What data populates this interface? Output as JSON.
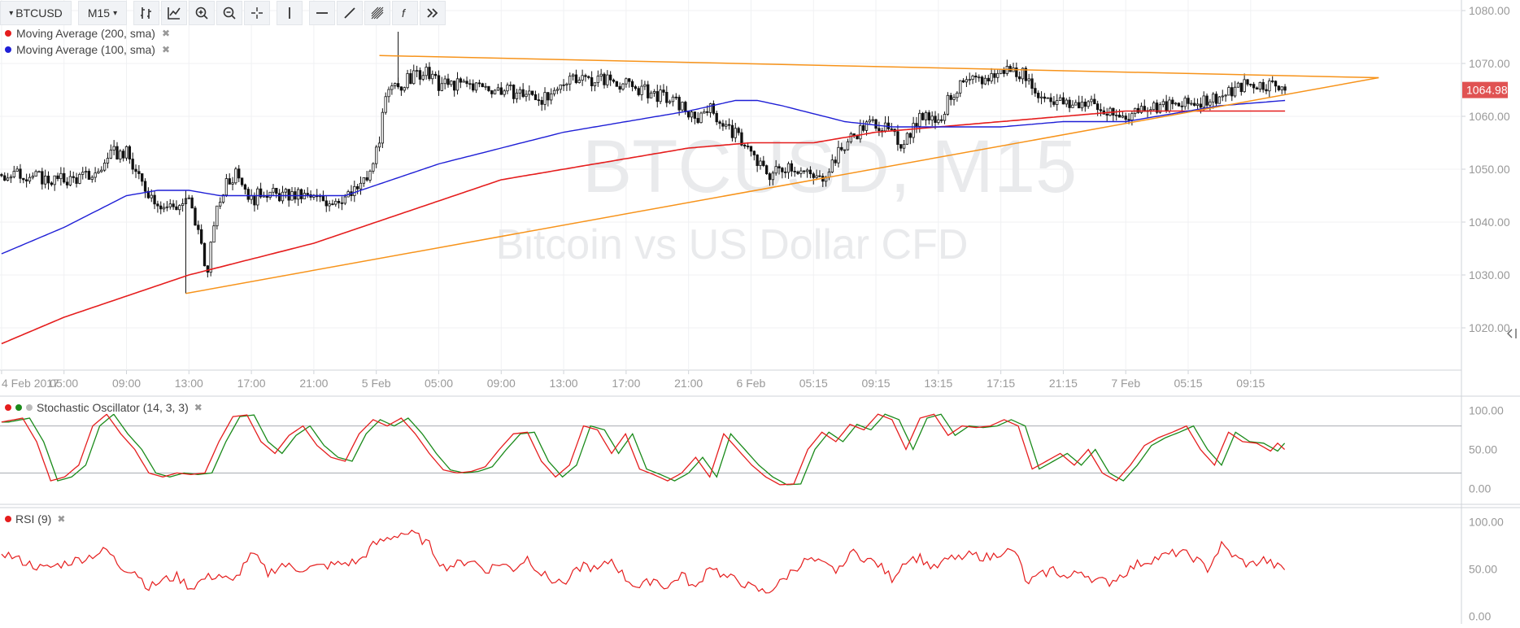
{
  "toolbar": {
    "symbol": "BTCUSD",
    "interval": "M15",
    "icons": [
      "bar-style-icon",
      "indicators-icon",
      "zoom-in-icon",
      "zoom-out-icon",
      "crosshair-icon",
      "vertical-line-icon",
      "horizontal-line-icon",
      "trend-line-icon",
      "fibonacci-icon",
      "formula-icon",
      "more-icon"
    ]
  },
  "legend": {
    "ma200": "Moving Average (200, sma)",
    "ma100": "Moving Average (100, sma)",
    "close_glyph": "✖"
  },
  "watermark": {
    "title": "BTCUSD, M15",
    "subtitle": "Bitcoin vs US Dollar CFD"
  },
  "indicators": {
    "stoch_label": "Stochastic Oscillator (14, 3, 3)",
    "rsi_label": "RSI (9)"
  },
  "colors": {
    "ma200": "#e51d1d",
    "ma100": "#1f1fd6",
    "trendline": "#f7931a",
    "candle": "#111111",
    "stoch_k": "#e51d1d",
    "stoch_d": "#1a8a1a",
    "rsi": "#e51d1d",
    "price_badge": "#e05252"
  },
  "chart_data": [
    {
      "type": "candlestick",
      "ylim": [
        1012,
        1082
      ],
      "y_ticks": [
        "1080.00",
        "1070.00",
        "1060.00",
        "1050.00",
        "1040.00",
        "1030.00",
        "1020.00"
      ],
      "y_tick_values": [
        1080,
        1070,
        1060,
        1050,
        1040,
        1030,
        1020
      ],
      "x_ticks": [
        "4 Feb 2017",
        "05:00",
        "09:00",
        "13:00",
        "17:00",
        "21:00",
        "5 Feb",
        "05:00",
        "09:00",
        "13:00",
        "17:00",
        "21:00",
        "6 Feb",
        "05:15",
        "09:15",
        "13:15",
        "17:15",
        "21:15",
        "7 Feb",
        "05:15",
        "09:15"
      ],
      "x_tick_index": [
        0,
        20,
        40,
        60,
        80,
        100,
        120,
        140,
        160,
        180,
        200,
        220,
        240,
        260,
        280,
        300,
        320,
        340,
        360,
        380,
        400
      ],
      "n_bars": 412,
      "last_price": "1064.98",
      "last_price_value": 1064.98,
      "price_anchors": [
        [
          0,
          1049
        ],
        [
          8,
          1049
        ],
        [
          15,
          1048
        ],
        [
          22,
          1048
        ],
        [
          30,
          1049
        ],
        [
          36,
          1053
        ],
        [
          40,
          1053
        ],
        [
          44,
          1048
        ],
        [
          48,
          1045
        ],
        [
          52,
          1043
        ],
        [
          56,
          1043
        ],
        [
          60,
          1044
        ],
        [
          64,
          1036
        ],
        [
          66,
          1030
        ],
        [
          68,
          1040
        ],
        [
          72,
          1048
        ],
        [
          76,
          1049
        ],
        [
          80,
          1044
        ],
        [
          84,
          1046
        ],
        [
          88,
          1045
        ],
        [
          95,
          1045
        ],
        [
          104,
          1044
        ],
        [
          112,
          1045
        ],
        [
          118,
          1049
        ],
        [
          121,
          1056
        ],
        [
          123,
          1063
        ],
        [
          125,
          1065
        ],
        [
          128,
          1066
        ],
        [
          133,
          1068
        ],
        [
          136,
          1068
        ],
        [
          140,
          1066
        ],
        [
          150,
          1066
        ],
        [
          160,
          1065
        ],
        [
          170,
          1064
        ],
        [
          176,
          1063
        ],
        [
          182,
          1068
        ],
        [
          188,
          1067
        ],
        [
          195,
          1067
        ],
        [
          205,
          1065
        ],
        [
          210,
          1064
        ],
        [
          218,
          1062
        ],
        [
          222,
          1059
        ],
        [
          226,
          1062
        ],
        [
          232,
          1058
        ],
        [
          238,
          1055
        ],
        [
          242,
          1051
        ],
        [
          246,
          1049
        ],
        [
          252,
          1051
        ],
        [
          258,
          1049
        ],
        [
          262,
          1048
        ],
        [
          268,
          1053
        ],
        [
          272,
          1056
        ],
        [
          276,
          1058
        ],
        [
          280,
          1059
        ],
        [
          284,
          1057
        ],
        [
          288,
          1055
        ],
        [
          292,
          1058
        ],
        [
          296,
          1061
        ],
        [
          300,
          1059
        ],
        [
          304,
          1064
        ],
        [
          308,
          1066
        ],
        [
          315,
          1067
        ],
        [
          322,
          1069
        ],
        [
          328,
          1068
        ],
        [
          330,
          1064
        ],
        [
          334,
          1064
        ],
        [
          338,
          1063
        ],
        [
          342,
          1062
        ],
        [
          348,
          1063
        ],
        [
          352,
          1061
        ],
        [
          356,
          1060
        ],
        [
          360,
          1060
        ],
        [
          366,
          1062
        ],
        [
          372,
          1062
        ],
        [
          378,
          1062
        ],
        [
          384,
          1063
        ],
        [
          392,
          1064
        ],
        [
          398,
          1066
        ],
        [
          402,
          1066
        ],
        [
          406,
          1066
        ],
        [
          410,
          1066
        ],
        [
          411,
          1065
        ]
      ],
      "ma100_anchors": [
        [
          0,
          1034
        ],
        [
          20,
          1039
        ],
        [
          40,
          1045
        ],
        [
          50,
          1046
        ],
        [
          60,
          1046
        ],
        [
          70,
          1045
        ],
        [
          80,
          1045
        ],
        [
          95,
          1045
        ],
        [
          110,
          1045
        ],
        [
          120,
          1047
        ],
        [
          140,
          1051
        ],
        [
          160,
          1054
        ],
        [
          180,
          1057
        ],
        [
          200,
          1059
        ],
        [
          220,
          1061
        ],
        [
          235,
          1063
        ],
        [
          242,
          1063
        ],
        [
          250,
          1062
        ],
        [
          270,
          1059
        ],
        [
          285,
          1058
        ],
        [
          300,
          1058
        ],
        [
          320,
          1058
        ],
        [
          340,
          1059
        ],
        [
          360,
          1059
        ],
        [
          370,
          1060
        ],
        [
          390,
          1062
        ],
        [
          411,
          1063
        ]
      ],
      "ma200_anchors": [
        [
          0,
          1017
        ],
        [
          20,
          1022
        ],
        [
          40,
          1026
        ],
        [
          60,
          1030
        ],
        [
          80,
          1033
        ],
        [
          100,
          1036
        ],
        [
          120,
          1040
        ],
        [
          140,
          1044
        ],
        [
          160,
          1048
        ],
        [
          180,
          1050
        ],
        [
          200,
          1052
        ],
        [
          220,
          1054
        ],
        [
          240,
          1055
        ],
        [
          260,
          1055
        ],
        [
          280,
          1057
        ],
        [
          300,
          1058
        ],
        [
          320,
          1059
        ],
        [
          340,
          1060
        ],
        [
          360,
          1061
        ],
        [
          380,
          1061
        ],
        [
          395,
          1061
        ],
        [
          411,
          1061
        ]
      ],
      "trendlines": [
        {
          "from": [
            59,
            1026.5
          ],
          "to": [
            441,
            1067.3
          ]
        },
        {
          "from": [
            121,
            1071.5
          ],
          "to": [
            441,
            1067.3
          ]
        }
      ]
    },
    {
      "type": "line",
      "name": "Stochastic Oscillator (14, 3, 3)",
      "ylim": [
        0,
        100
      ],
      "y_ticks": [
        "100.00",
        "50.00",
        "0.00"
      ],
      "y_tick_values": [
        100,
        50,
        0
      ],
      "levels": [
        20,
        80
      ],
      "k_anchors": [
        [
          0,
          85
        ],
        [
          6,
          90
        ],
        [
          10,
          60
        ],
        [
          14,
          10
        ],
        [
          18,
          15
        ],
        [
          22,
          30
        ],
        [
          26,
          80
        ],
        [
          30,
          95
        ],
        [
          34,
          70
        ],
        [
          38,
          50
        ],
        [
          42,
          20
        ],
        [
          46,
          15
        ],
        [
          50,
          20
        ],
        [
          54,
          18
        ],
        [
          58,
          20
        ],
        [
          62,
          60
        ],
        [
          66,
          92
        ],
        [
          70,
          94
        ],
        [
          74,
          60
        ],
        [
          78,
          45
        ],
        [
          82,
          68
        ],
        [
          86,
          80
        ],
        [
          90,
          55
        ],
        [
          94,
          40
        ],
        [
          98,
          35
        ],
        [
          102,
          70
        ],
        [
          106,
          88
        ],
        [
          110,
          80
        ],
        [
          114,
          90
        ],
        [
          118,
          70
        ],
        [
          122,
          45
        ],
        [
          126,
          24
        ],
        [
          130,
          20
        ],
        [
          134,
          22
        ],
        [
          138,
          28
        ],
        [
          142,
          50
        ],
        [
          146,
          70
        ],
        [
          150,
          72
        ],
        [
          154,
          35
        ],
        [
          158,
          15
        ],
        [
          162,
          30
        ],
        [
          166,
          80
        ],
        [
          170,
          75
        ],
        [
          174,
          45
        ],
        [
          178,
          70
        ],
        [
          182,
          25
        ],
        [
          186,
          18
        ],
        [
          190,
          10
        ],
        [
          194,
          20
        ],
        [
          198,
          40
        ],
        [
          202,
          15
        ],
        [
          206,
          70
        ],
        [
          210,
          50
        ],
        [
          214,
          30
        ],
        [
          218,
          15
        ],
        [
          222,
          5
        ],
        [
          226,
          6
        ],
        [
          230,
          50
        ],
        [
          234,
          72
        ],
        [
          238,
          60
        ],
        [
          242,
          82
        ],
        [
          246,
          75
        ],
        [
          250,
          95
        ],
        [
          254,
          88
        ],
        [
          258,
          50
        ],
        [
          262,
          90
        ],
        [
          266,
          95
        ],
        [
          270,
          68
        ],
        [
          274,
          80
        ],
        [
          278,
          78
        ],
        [
          282,
          80
        ],
        [
          286,
          88
        ],
        [
          290,
          80
        ],
        [
          294,
          25
        ],
        [
          298,
          35
        ],
        [
          302,
          45
        ],
        [
          306,
          30
        ],
        [
          310,
          50
        ],
        [
          314,
          20
        ],
        [
          318,
          10
        ],
        [
          322,
          30
        ],
        [
          326,
          55
        ],
        [
          330,
          65
        ],
        [
          334,
          72
        ],
        [
          338,
          80
        ],
        [
          342,
          50
        ],
        [
          346,
          30
        ],
        [
          350,
          72
        ],
        [
          354,
          60
        ],
        [
          358,
          58
        ],
        [
          362,
          48
        ],
        [
          364,
          58
        ],
        [
          366,
          50
        ]
      ],
      "d_lag": 2
    },
    {
      "type": "line",
      "name": "RSI (9)",
      "ylim": [
        0,
        100
      ],
      "y_ticks": [
        "100.00",
        "50.00",
        "0.00"
      ],
      "y_tick_values": [
        100,
        50,
        0
      ],
      "values_anchors": [
        [
          0,
          68
        ],
        [
          6,
          58
        ],
        [
          12,
          50
        ],
        [
          18,
          56
        ],
        [
          24,
          62
        ],
        [
          30,
          70
        ],
        [
          34,
          52
        ],
        [
          38,
          48
        ],
        [
          42,
          30
        ],
        [
          46,
          38
        ],
        [
          50,
          42
        ],
        [
          54,
          30
        ],
        [
          58,
          40
        ],
        [
          62,
          44
        ],
        [
          66,
          35
        ],
        [
          70,
          60
        ],
        [
          72,
          65
        ],
        [
          76,
          45
        ],
        [
          80,
          55
        ],
        [
          84,
          50
        ],
        [
          90,
          52
        ],
        [
          96,
          55
        ],
        [
          102,
          58
        ],
        [
          106,
          75
        ],
        [
          110,
          82
        ],
        [
          114,
          88
        ],
        [
          118,
          86
        ],
        [
          122,
          75
        ],
        [
          126,
          52
        ],
        [
          130,
          55
        ],
        [
          134,
          60
        ],
        [
          138,
          48
        ],
        [
          142,
          56
        ],
        [
          146,
          50
        ],
        [
          150,
          62
        ],
        [
          154,
          45
        ],
        [
          158,
          36
        ],
        [
          162,
          40
        ],
        [
          166,
          55
        ],
        [
          170,
          48
        ],
        [
          174,
          60
        ],
        [
          178,
          40
        ],
        [
          182,
          30
        ],
        [
          186,
          40
        ],
        [
          190,
          30
        ],
        [
          194,
          45
        ],
        [
          198,
          28
        ],
        [
          202,
          55
        ],
        [
          206,
          42
        ],
        [
          210,
          38
        ],
        [
          214,
          30
        ],
        [
          218,
          25
        ],
        [
          222,
          35
        ],
        [
          226,
          50
        ],
        [
          230,
          60
        ],
        [
          234,
          55
        ],
        [
          238,
          48
        ],
        [
          242,
          68
        ],
        [
          246,
          62
        ],
        [
          250,
          55
        ],
        [
          254,
          40
        ],
        [
          258,
          60
        ],
        [
          262,
          62
        ],
        [
          266,
          50
        ],
        [
          270,
          60
        ],
        [
          274,
          65
        ],
        [
          278,
          64
        ],
        [
          282,
          62
        ],
        [
          286,
          70
        ],
        [
          290,
          65
        ],
        [
          292,
          35
        ],
        [
          296,
          42
        ],
        [
          300,
          50
        ],
        [
          304,
          40
        ],
        [
          308,
          48
        ],
        [
          312,
          38
        ],
        [
          316,
          36
        ],
        [
          320,
          45
        ],
        [
          324,
          55
        ],
        [
          328,
          60
        ],
        [
          332,
          64
        ],
        [
          336,
          68
        ],
        [
          340,
          62
        ],
        [
          344,
          50
        ],
        [
          348,
          75
        ],
        [
          352,
          62
        ],
        [
          356,
          54
        ],
        [
          360,
          60
        ],
        [
          364,
          52
        ],
        [
          366,
          50
        ]
      ]
    }
  ]
}
